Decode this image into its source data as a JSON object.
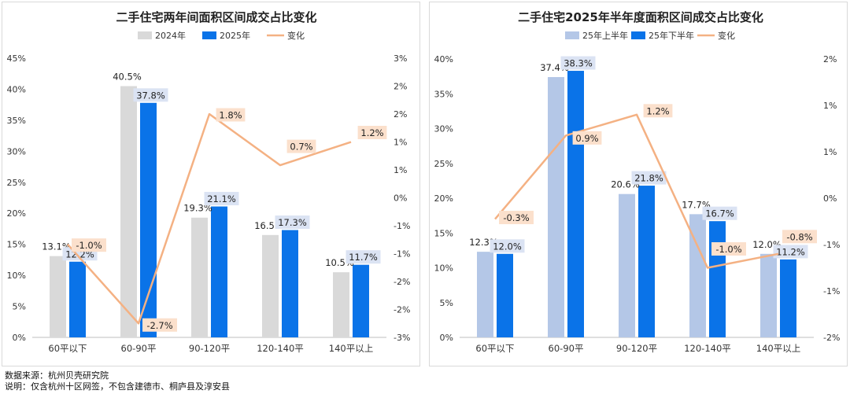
{
  "chart_data": [
    {
      "type": "bar",
      "title": "二手住宅两年间面积区间成交占比变化",
      "categories": [
        "60平以下",
        "60-90平",
        "90-120平",
        "120-140平",
        "140平以上"
      ],
      "series": [
        {
          "name": "2024年",
          "values": [
            13.1,
            40.5,
            19.3,
            16.5,
            10.5
          ],
          "labels": [
            "13.1%",
            "40.5%",
            "19.3%",
            "16.5%",
            "10.5%"
          ],
          "color": "#d9d9d9"
        },
        {
          "name": "2025年",
          "values": [
            12.2,
            37.8,
            21.1,
            17.3,
            11.7
          ],
          "labels": [
            "12.2%",
            "37.8%",
            "21.1%",
            "17.3%",
            "11.7%"
          ],
          "color": "#0a73e8",
          "label_box": "#dbe3f3"
        }
      ],
      "line": {
        "name": "变化",
        "values": [
          -1.0,
          -2.7,
          1.8,
          0.7,
          1.2
        ],
        "labels": [
          "-1.0%",
          "-2.7%",
          "1.8%",
          "0.7%",
          "1.2%"
        ],
        "color": "#f4b183",
        "label_box": "#fbe0cc"
      },
      "ylim": [
        0,
        45
      ],
      "yticks": [
        "0%",
        "5%",
        "10%",
        "15%",
        "20%",
        "25%",
        "30%",
        "35%",
        "40%",
        "45%"
      ],
      "y2lim": [
        -3,
        3
      ],
      "y2ticks": [
        "-3%",
        "-2%",
        "-2%",
        "-1%",
        "-1%",
        "0%",
        "1%",
        "1%",
        "2%",
        "2%",
        "3%"
      ],
      "legend": "top"
    },
    {
      "type": "bar",
      "title": "二手住宅2025年半年度面积区间成交占比变化",
      "categories": [
        "60平以下",
        "60-90平",
        "90-120平",
        "120-140平",
        "140平以上"
      ],
      "series": [
        {
          "name": "25年上半年",
          "values": [
            12.3,
            37.4,
            20.6,
            17.7,
            12.0
          ],
          "labels": [
            "12.3%",
            "37.4%",
            "20.6%",
            "17.7%",
            "12.0%"
          ],
          "color": "#b4c7e7"
        },
        {
          "name": "25年下半年",
          "values": [
            12.0,
            38.3,
            21.8,
            16.7,
            11.2
          ],
          "labels": [
            "12.0%",
            "38.3%",
            "21.8%",
            "16.7%",
            "11.2%"
          ],
          "color": "#0a73e8",
          "label_box": "#dbe3f3"
        }
      ],
      "line": {
        "name": "变化",
        "values": [
          -0.3,
          0.9,
          1.2,
          -1.0,
          -0.8
        ],
        "labels": [
          "-0.3%",
          "0.9%",
          "1.2%",
          "-1.0%",
          "-0.8%"
        ],
        "color": "#f4b183",
        "label_box": "#fbe0cc"
      },
      "ylim": [
        0,
        40
      ],
      "yticks": [
        "0%",
        "5%",
        "10%",
        "15%",
        "20%",
        "25%",
        "30%",
        "35%",
        "40%"
      ],
      "y2lim": [
        -2,
        2
      ],
      "y2ticks": [
        "-2%",
        "-1%",
        "-1%",
        "0%",
        "1%",
        "1%",
        "2%"
      ],
      "legend": "top"
    }
  ],
  "footer": {
    "source": "数据来源：杭州贝壳研究院",
    "note": "说明：仅含杭州十区网签，不包含建德市、桐庐县及淳安县"
  }
}
